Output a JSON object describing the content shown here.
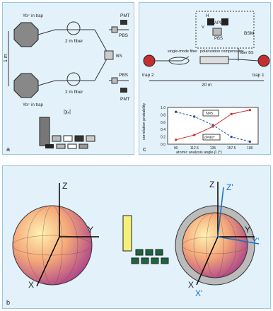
{
  "panel_a": {
    "label": "a",
    "yb_top": "Yb⁺\nin trap",
    "yb_bottom": "Yb⁺\nin trap",
    "fiber_top": "2 m fiber",
    "fiber_bottom": "2 m fiber",
    "distance": "1 m",
    "pmt_top": "PMT",
    "pmt_bottom": "PMT",
    "pbs_top": "PBS",
    "pbs_bottom": "PBS",
    "bs": "BS",
    "matrix_label": "|χₑ|"
  },
  "panel_c": {
    "label": "c",
    "h_label": "H",
    "v_label": "V",
    "apd": "APD",
    "pbs": "PBS",
    "bsm": "BSM",
    "single_mode_fiber": "single-mode\nfiber",
    "polarization_compensator": "polarization\ncompensator",
    "fiber_bs": "fiber\nBS",
    "trap2": "trap 2",
    "trap1": "trap 1",
    "distance": "20 m",
    "chart_legend_n": "N=5",
    "chart_legend_a": "α=90°"
  },
  "panel_b": {
    "label": "b",
    "z": "Z",
    "y": "Y",
    "x": "X",
    "z_prime": "Z'",
    "y_prime": "Y'",
    "x_prime": "X'"
  },
  "chart_data": {
    "type": "line",
    "x": [
      90,
      112.5,
      135,
      157.5,
      180
    ],
    "xlabel": "atomic analysis angle β (°)",
    "ylabel": "correlation probability",
    "xlim": [
      80,
      190
    ],
    "ylim": [
      0,
      1.0
    ],
    "yticks": [
      "0.0",
      "0.2",
      "0.4",
      "0.6",
      "0.8",
      "1.0"
    ],
    "xticks": [
      "90",
      "112.5",
      "135",
      "157.5",
      "180"
    ],
    "series": [
      {
        "color": "#1a4fa0",
        "style": "dashed",
        "values": [
          0.88,
          0.75,
          0.52,
          0.2,
          0.07
        ]
      },
      {
        "color": "#d43030",
        "style": "solid",
        "values": [
          0.12,
          0.25,
          0.48,
          0.82,
          0.93
        ]
      }
    ]
  }
}
